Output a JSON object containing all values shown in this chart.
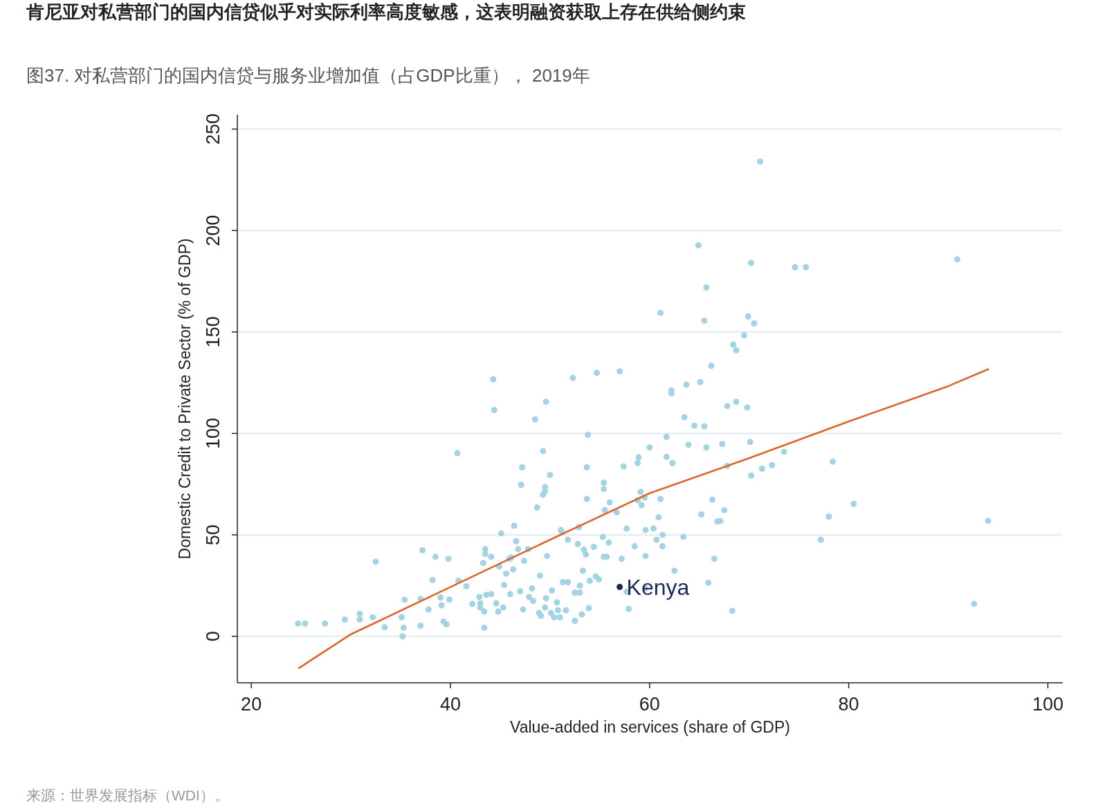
{
  "chart_data": {
    "type": "scatter",
    "title": "肯尼亚对私营部门的国内信贷似乎对实际利率高度敏感，这表明融资获取上存在供给侧约束",
    "subtitle": "图37. 对私营部门的国内信贷与服务业增加值（占GDP比重）， 2019年",
    "xlabel": "Value-added in services (share of GDP)",
    "ylabel": "Domestic Credit to Private Sector (% of GDP)",
    "annotations": [
      "来源：世界发展指标（WDI）。"
    ],
    "xlim": [
      18.6,
      101.5
    ],
    "ylim": [
      -22.9,
      257
    ],
    "xticks": [
      20,
      40,
      60,
      80,
      100
    ],
    "yticks": [
      0,
      50,
      100,
      150,
      200,
      250
    ],
    "grid": "y",
    "marker": "circle",
    "series": [
      {
        "color": "#a6d3e3",
        "x": [
          24.7,
          25.4,
          27.4,
          29.4,
          30.9,
          30.9,
          32.2,
          32.5,
          33.4,
          35.1,
          35.3,
          35.2,
          35.4,
          37,
          37,
          37.2,
          37.8,
          38.2,
          38.5,
          39,
          39.1,
          39.3,
          39.6,
          39.8,
          39.9,
          40.7,
          40.8,
          41.6,
          42.2,
          42.9,
          43,
          43,
          43.3,
          43.5,
          43.5,
          43.4,
          43.6,
          43.4,
          44.1,
          44.1,
          44.3,
          44.4,
          44.6,
          44.8,
          44.9,
          45.1,
          45.3,
          45.4,
          45.6,
          45.9,
          46,
          46.1,
          46.3,
          46.4,
          46.6,
          46.8,
          47,
          47.1,
          47.2,
          47.3,
          47.4,
          47.8,
          47.9,
          48.2,
          48.3,
          48.5,
          48.7,
          48.9,
          49,
          49.1,
          49.3,
          49.3,
          49.5,
          49.5,
          49.5,
          49.6,
          49.6,
          49.7,
          50,
          50.1,
          50.2,
          50.4,
          50.7,
          50.8,
          51,
          51.1,
          51.2,
          51.3,
          51.6,
          51.8,
          51.8,
          52.3,
          52.5,
          52.5,
          52.8,
          52.9,
          53,
          53,
          53.2,
          53.3,
          53.4,
          53.6,
          53.7,
          53.7,
          53.8,
          54,
          53.9,
          54.4,
          54.6,
          54.7,
          54.9,
          55.3,
          55.4,
          55.4,
          55.5,
          55.4,
          55.7,
          55.9,
          56,
          56.7,
          57,
          57.2,
          57.4,
          57.7,
          57.7,
          57.9,
          58.5,
          58.8,
          58.9,
          58.8,
          59.2,
          59.1,
          59.5,
          59.6,
          59.6,
          60,
          60.4,
          60.7,
          60.9,
          59.6,
          61.1,
          61.1,
          61.3,
          61.3,
          61.7,
          61.7,
          62.2,
          62.2,
          62.3,
          62.5,
          63.4,
          63.5,
          63.7,
          63.9,
          64.5,
          65.1,
          64.9,
          65.2,
          65.5,
          65.5,
          65.7,
          65.7,
          65.9,
          66.2,
          66.3,
          66.5,
          66.8,
          67.1,
          67.3,
          67.5,
          67.8,
          67.8,
          68.3,
          68.4,
          68.7,
          68.7,
          69.5,
          69.8,
          69.9,
          70.1,
          70.2,
          70.2,
          70.5,
          71.1,
          71.3,
          72.3,
          73.5,
          74.6,
          75.7,
          77.2,
          78,
          78.4,
          80.5,
          90.9,
          92.6,
          94
        ],
        "values": [
          6.3,
          6.3,
          6.3,
          8.3,
          11.1,
          8.3,
          9.4,
          36.8,
          4.5,
          9.4,
          4.2,
          0,
          18,
          18.4,
          5.2,
          42.4,
          13.2,
          27.8,
          39.2,
          19.1,
          15.3,
          7.3,
          5.9,
          38.2,
          18.1,
          90.3,
          27.4,
          24.7,
          16,
          19.4,
          16.3,
          14.2,
          36.1,
          43,
          40.6,
          4.2,
          20.5,
          12.2,
          39.2,
          20.8,
          126.7,
          111.5,
          16.3,
          12.2,
          34.4,
          50.7,
          14.2,
          25.3,
          30.9,
          38.2,
          20.8,
          38.9,
          33,
          54.5,
          46.9,
          43,
          22.2,
          74.7,
          83.3,
          13.2,
          37.2,
          43,
          19.4,
          23.6,
          17.4,
          106.9,
          63.5,
          11.5,
          29.9,
          10.1,
          91.3,
          69.8,
          73.6,
          71.5,
          14.2,
          115.6,
          18.8,
          39.6,
          79.5,
          11.5,
          22.6,
          9.4,
          16.7,
          12.8,
          9.4,
          52.4,
          51.4,
          26.7,
          12.8,
          47.6,
          26.7,
          127.4,
          21.5,
          7.6,
          45.5,
          53.8,
          21.5,
          25,
          10.8,
          32.3,
          42.7,
          40.3,
          67.7,
          83.3,
          99.3,
          27.4,
          13.9,
          44.1,
          29.5,
          129.9,
          28.1,
          49,
          75.7,
          72.6,
          62.2,
          39.2,
          39.2,
          46.2,
          66,
          61.1,
          130.6,
          38.2,
          83.7,
          53.1,
          21.9,
          13.5,
          44.4,
          85.4,
          88.2,
          67,
          64.6,
          71.2,
          68.4,
          52.4,
          39.6,
          93.1,
          53.1,
          47.6,
          58.7,
          23.6,
          159.4,
          67.7,
          50,
          44.4,
          98.3,
          88.5,
          121.2,
          119.8,
          85.4,
          32.3,
          49,
          108,
          124,
          94.4,
          103.8,
          125.3,
          192.7,
          60.1,
          103.5,
          155.6,
          171.9,
          93.1,
          26.4,
          133.3,
          67.4,
          38.2,
          56.6,
          56.9,
          94.8,
          62.2,
          113.5,
          84,
          12.5,
          143.8,
          141,
          115.6,
          148.3,
          112.8,
          157.6,
          95.8,
          184,
          79.2,
          154.2,
          234,
          82.6,
          84.4,
          91,
          181.9,
          181.9,
          47.6,
          59,
          86.1,
          65.3,
          185.8,
          16,
          56.9
        ]
      },
      {
        "name": "Kenya",
        "color": "#1b2a55",
        "x": [
          57
        ],
        "values": [
          24.3
        ]
      },
      {
        "type": "line",
        "color": "#d9662a",
        "marker": "none",
        "x": [
          24.8,
          30,
          40,
          50,
          60,
          70,
          80,
          90,
          94
        ],
        "values": [
          -15.6,
          1,
          24.3,
          47.6,
          70.5,
          87.8,
          105.9,
          123.3,
          131.6
        ]
      }
    ]
  }
}
